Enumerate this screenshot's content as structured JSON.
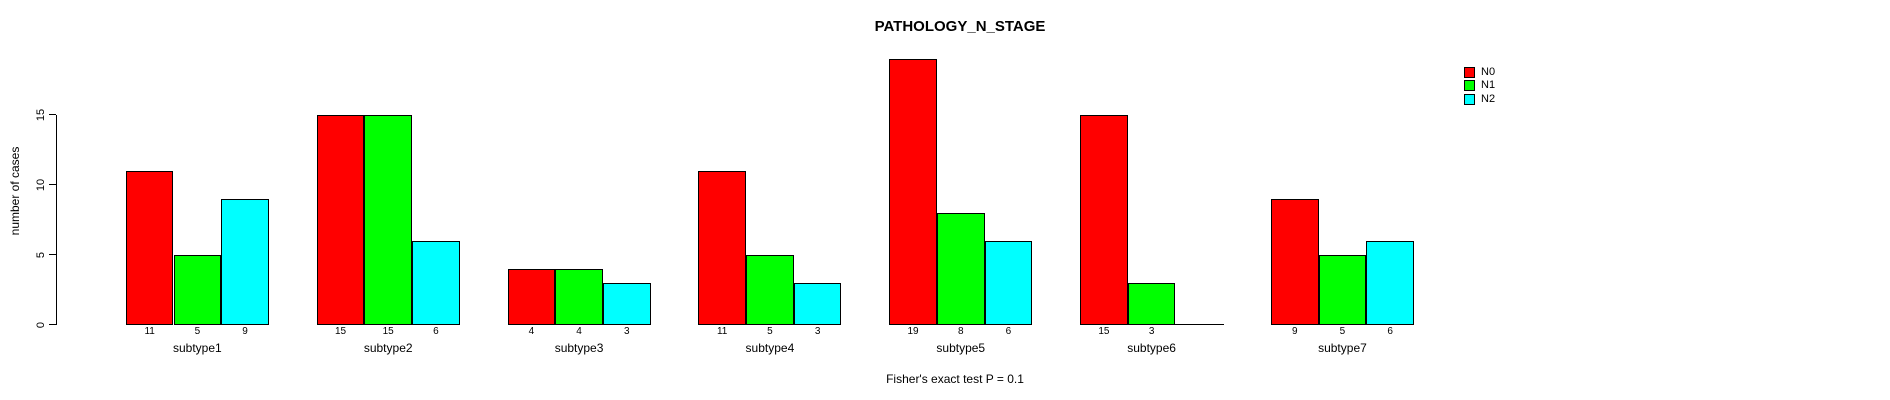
{
  "chart_data": {
    "type": "bar",
    "title": "PATHOLOGY_N_STAGE",
    "subtitle": "Fisher's exact test P = 0.1",
    "ylabel": "number of cases",
    "xlabel": "",
    "categories": [
      "subtype1",
      "subtype2",
      "subtype3",
      "subtype4",
      "subtype5",
      "subtype6",
      "subtype7"
    ],
    "series": [
      {
        "name": "N0",
        "color": "#FF0000",
        "values": [
          11,
          15,
          4,
          11,
          19,
          15,
          9
        ]
      },
      {
        "name": "N1",
        "color": "#00FF00",
        "values": [
          5,
          15,
          4,
          5,
          8,
          3,
          5
        ]
      },
      {
        "name": "N2",
        "color": "#00FFFF",
        "values": [
          9,
          6,
          3,
          3,
          6,
          0,
          6
        ]
      }
    ],
    "yticks": [
      0,
      5,
      10,
      15
    ],
    "ylim": [
      0,
      19
    ],
    "grid": false,
    "legend_position": "top-right",
    "bar_border_color": "#000000",
    "text_color": "#000000",
    "background_color": "#FFFFFF",
    "note": "zero-height bars drawn as baseline segment with no value label"
  }
}
